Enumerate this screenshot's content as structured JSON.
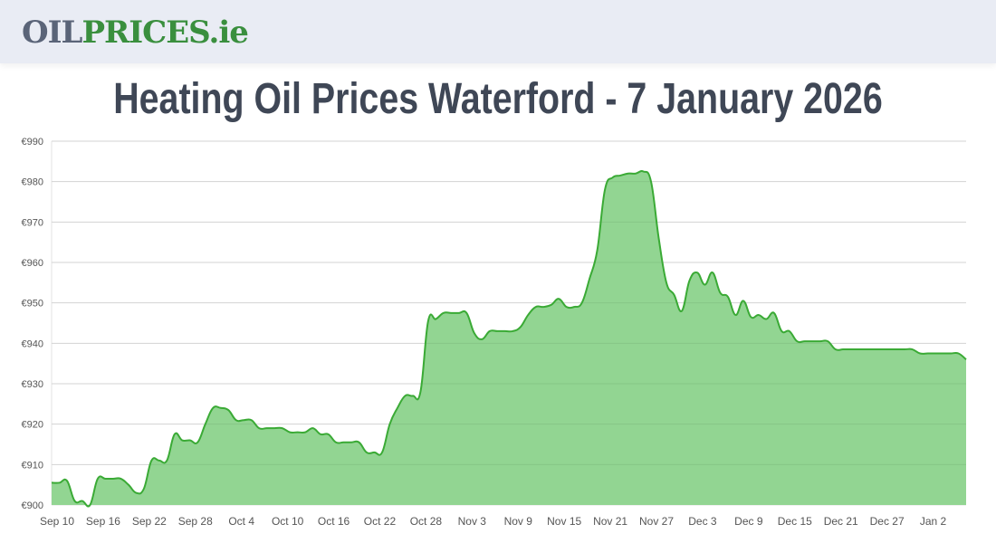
{
  "header": {
    "logo_part1": "OIL",
    "logo_part2": "PRICES",
    "logo_part3": ".ie"
  },
  "page_title": "Heating Oil Prices Waterford - 7 January 2026",
  "colors": {
    "fill": "#92d592",
    "line": "#3aaa35",
    "grid": "#e3e3e3",
    "logo_grey": "#5a6478",
    "logo_green": "#3a8f3e"
  },
  "chart_data": {
    "type": "area",
    "title": "",
    "xlabel": "",
    "ylabel": "",
    "ylim": [
      900,
      990
    ],
    "grid": true,
    "y_ticks": [
      "€900",
      "€910",
      "€920",
      "€930",
      "€940",
      "€950",
      "€960",
      "€970",
      "€980",
      "€990"
    ],
    "x_ticks": [
      "Sep 10",
      "Sep 16",
      "Sep 22",
      "Sep 28",
      "Oct 4",
      "Oct 10",
      "Oct 16",
      "Oct 22",
      "Oct 28",
      "Nov 3",
      "Nov 9",
      "Nov 15",
      "Nov 21",
      "Nov 27",
      "Dec 3",
      "Dec 9",
      "Dec 15",
      "Dec 21",
      "Dec 27",
      "Jan 2"
    ],
    "x": [
      "Sep 10",
      "Sep 11",
      "Sep 12",
      "Sep 13",
      "Sep 14",
      "Sep 15",
      "Sep 16",
      "Sep 17",
      "Sep 18",
      "Sep 19",
      "Sep 20",
      "Sep 21",
      "Sep 22",
      "Sep 23",
      "Sep 24",
      "Sep 25",
      "Sep 26",
      "Sep 27",
      "Sep 28",
      "Sep 29",
      "Sep 30",
      "Oct 1",
      "Oct 2",
      "Oct 3",
      "Oct 4",
      "Oct 5",
      "Oct 6",
      "Oct 7",
      "Oct 8",
      "Oct 9",
      "Oct 10",
      "Oct 11",
      "Oct 12",
      "Oct 13",
      "Oct 14",
      "Oct 15",
      "Oct 16",
      "Oct 17",
      "Oct 18",
      "Oct 19",
      "Oct 20",
      "Oct 21",
      "Oct 22",
      "Oct 23",
      "Oct 24",
      "Oct 25",
      "Oct 26",
      "Oct 27",
      "Oct 28",
      "Oct 29",
      "Oct 30",
      "Oct 31",
      "Nov 1",
      "Nov 2",
      "Nov 3",
      "Nov 4",
      "Nov 5",
      "Nov 6",
      "Nov 7",
      "Nov 8",
      "Nov 9",
      "Nov 10",
      "Nov 11",
      "Nov 12",
      "Nov 13",
      "Nov 14",
      "Nov 15",
      "Nov 16",
      "Nov 17",
      "Nov 18",
      "Nov 19",
      "Nov 20",
      "Nov 21",
      "Nov 22",
      "Nov 23",
      "Nov 24",
      "Nov 25",
      "Nov 26",
      "Nov 27",
      "Nov 28",
      "Nov 29",
      "Nov 30",
      "Dec 1",
      "Dec 2",
      "Dec 3",
      "Dec 4",
      "Dec 5",
      "Dec 6",
      "Dec 7",
      "Dec 8",
      "Dec 9",
      "Dec 10",
      "Dec 11",
      "Dec 12",
      "Dec 13",
      "Dec 14",
      "Dec 15",
      "Dec 16",
      "Dec 17",
      "Dec 18",
      "Dec 19",
      "Dec 20",
      "Dec 21",
      "Dec 22",
      "Dec 23",
      "Dec 24",
      "Dec 25",
      "Dec 26",
      "Dec 27",
      "Dec 28",
      "Dec 29",
      "Dec 30",
      "Dec 31",
      "Jan 1",
      "Jan 2",
      "Jan 3",
      "Jan 4",
      "Jan 5",
      "Jan 6",
      "Jan 7"
    ],
    "values": [
      905.5,
      905.5,
      906,
      901,
      901,
      900,
      906.5,
      906.5,
      906.5,
      906.5,
      905,
      903,
      904,
      911,
      911,
      911,
      917.5,
      916,
      916,
      915.5,
      920,
      924,
      924,
      923.5,
      921,
      921,
      921,
      919,
      919,
      919,
      919,
      918,
      918,
      918,
      919,
      917.5,
      917.5,
      915.5,
      915.5,
      915.5,
      915.5,
      913,
      913,
      913,
      920,
      924,
      927,
      927,
      928,
      945.5,
      946,
      947.5,
      947.5,
      947.5,
      947.5,
      942.5,
      941,
      943,
      943,
      943,
      943,
      944,
      947,
      949,
      949,
      949.5,
      951,
      949,
      949,
      950,
      956,
      963,
      978,
      981,
      981.5,
      982,
      982,
      982.5,
      980,
      966,
      955,
      952,
      948,
      955.5,
      957.5,
      954.5,
      957.5,
      952.5,
      951.5,
      947,
      950.5,
      946.5,
      947,
      946,
      947.5,
      943,
      943,
      940.5,
      940.5,
      940.5,
      940.5,
      940.5,
      938.5,
      938.5,
      938.5,
      938.5,
      938.5,
      938.5,
      938.5,
      938.5,
      938.5,
      938.5,
      938.5,
      937.5,
      937.5,
      937.5,
      937.5,
      937.5,
      937.5,
      936
    ]
  }
}
